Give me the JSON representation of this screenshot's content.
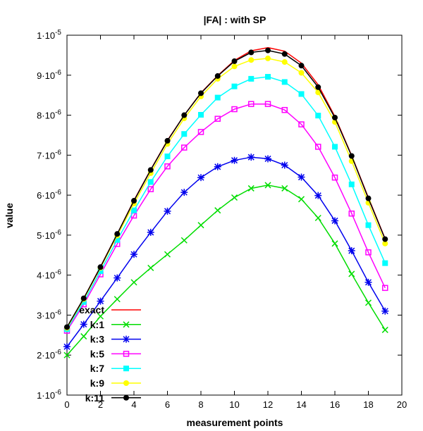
{
  "chart_data": {
    "type": "line",
    "title": "|FA| : with SP",
    "xlabel": "measurement points",
    "ylabel": "value",
    "xlim": [
      0,
      20
    ],
    "ylim": [
      1e-06,
      1e-05
    ],
    "grid": false,
    "legend_position": "bottom-left",
    "x_ticks": [
      0,
      2,
      4,
      6,
      8,
      10,
      12,
      14,
      16,
      18,
      20
    ],
    "x_tick_labels": [
      "0",
      "2",
      "4",
      "6",
      "8",
      "10",
      "12",
      "14",
      "16",
      "18",
      "20"
    ],
    "y_ticks": [
      1e-06,
      2e-06,
      3e-06,
      4e-06,
      5e-06,
      6e-06,
      7e-06,
      8e-06,
      9e-06,
      1e-05
    ],
    "y_tick_labels": [
      {
        "mant": "1",
        "exp": "-6"
      },
      {
        "mant": "2",
        "exp": "-6"
      },
      {
        "mant": "3",
        "exp": "-6"
      },
      {
        "mant": "4",
        "exp": "-6"
      },
      {
        "mant": "5",
        "exp": "-6"
      },
      {
        "mant": "6",
        "exp": "-6"
      },
      {
        "mant": "7",
        "exp": "-6"
      },
      {
        "mant": "8",
        "exp": "-6"
      },
      {
        "mant": "9",
        "exp": "-6"
      },
      {
        "mant": "1",
        "exp": "-5"
      }
    ],
    "x": [
      0,
      1,
      2,
      3,
      4,
      5,
      6,
      7,
      8,
      9,
      10,
      11,
      12,
      13,
      14,
      15,
      16,
      17,
      18,
      19
    ],
    "series": [
      {
        "name": "exact",
        "color": "#ff0000",
        "marker": "none",
        "values": [
          2.7e-06,
          3.42e-06,
          4.21e-06,
          5.03e-06,
          5.87e-06,
          6.64e-06,
          7.37e-06,
          8e-06,
          8.56e-06,
          8.99e-06,
          9.37e-06,
          9.61e-06,
          9.69e-06,
          9.6e-06,
          9.3e-06,
          8.76e-06,
          7.97e-06,
          6.99e-06,
          5.94e-06,
          4.91e-06
        ]
      },
      {
        "name": "k:1",
        "color": "#00dd00",
        "marker": "x",
        "values": [
          2e-06,
          2.47e-06,
          2.97e-06,
          3.4e-06,
          3.82e-06,
          4.18e-06,
          4.52e-06,
          4.87e-06,
          5.25e-06,
          5.62e-06,
          5.94e-06,
          6.17e-06,
          6.25e-06,
          6.17e-06,
          5.9e-06,
          5.43e-06,
          4.79e-06,
          4.03e-06,
          3.31e-06,
          2.63e-06
        ]
      },
      {
        "name": "k:3",
        "color": "#0000ee",
        "marker": "star",
        "values": [
          2.21e-06,
          2.77e-06,
          3.35e-06,
          3.93e-06,
          4.52e-06,
          5.07e-06,
          5.6e-06,
          6.07e-06,
          6.44e-06,
          6.71e-06,
          6.87e-06,
          6.95e-06,
          6.91e-06,
          6.75e-06,
          6.45e-06,
          5.99e-06,
          5.36e-06,
          4.61e-06,
          3.82e-06,
          3.1e-06
        ]
      },
      {
        "name": "k:5",
        "color": "#ff00ff",
        "marker": "square-open",
        "values": [
          2.61e-06,
          3.27e-06,
          4.02e-06,
          4.78e-06,
          5.49e-06,
          6.15e-06,
          6.72e-06,
          7.19e-06,
          7.58e-06,
          7.91e-06,
          8.15e-06,
          8.28e-06,
          8.28e-06,
          8.13e-06,
          7.77e-06,
          7.21e-06,
          6.44e-06,
          5.54e-06,
          4.57e-06,
          3.68e-06
        ]
      },
      {
        "name": "k:7",
        "color": "#00ffff",
        "marker": "square",
        "values": [
          2.65e-06,
          3.33e-06,
          4.1e-06,
          4.88e-06,
          5.62e-06,
          6.33e-06,
          6.97e-06,
          7.53e-06,
          8.01e-06,
          8.44e-06,
          8.72e-06,
          8.91e-06,
          8.96e-06,
          8.83e-06,
          8.53e-06,
          7.99e-06,
          7.21e-06,
          6.27e-06,
          5.25e-06,
          4.3e-06
        ]
      },
      {
        "name": "k:9",
        "color": "#ffff00",
        "marker": "circle",
        "values": [
          2.68e-06,
          3.4e-06,
          4.18e-06,
          4.99e-06,
          5.79e-06,
          6.55e-06,
          7.28e-06,
          7.92e-06,
          8.47e-06,
          8.91e-06,
          9.22e-06,
          9.38e-06,
          9.42e-06,
          9.33e-06,
          9.06e-06,
          8.57e-06,
          7.83e-06,
          6.85e-06,
          5.81e-06,
          4.79e-06
        ]
      },
      {
        "name": "k:11",
        "color": "#000000",
        "marker": "circle",
        "values": [
          2.7e-06,
          3.42e-06,
          4.2e-06,
          5.03e-06,
          5.86e-06,
          6.63e-06,
          7.36e-06,
          8e-06,
          8.55e-06,
          8.98e-06,
          9.35e-06,
          9.57e-06,
          9.62e-06,
          9.53e-06,
          9.24e-06,
          8.7e-06,
          7.94e-06,
          6.98e-06,
          5.92e-06,
          4.9e-06
        ]
      }
    ]
  }
}
